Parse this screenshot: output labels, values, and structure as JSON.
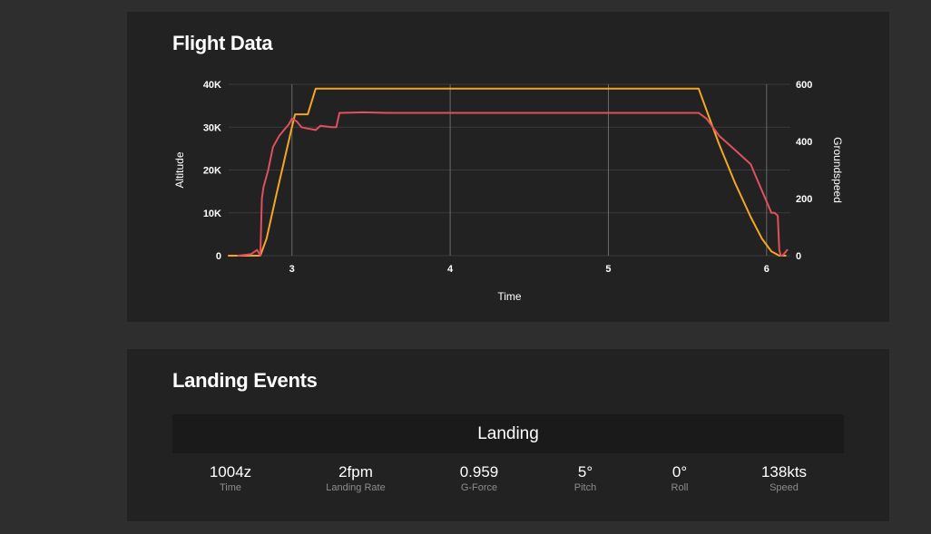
{
  "flight_data": {
    "title": "Flight Data"
  },
  "landing_events": {
    "title": "Landing Events",
    "table_header": "Landing",
    "stats": [
      {
        "value": "1004z",
        "label": "Time"
      },
      {
        "value": "2fpm",
        "label": "Landing Rate"
      },
      {
        "value": "0.959",
        "label": "G-Force"
      },
      {
        "value": "5°",
        "label": "Pitch"
      },
      {
        "value": "0°",
        "label": "Roll"
      },
      {
        "value": "138kts",
        "label": "Speed"
      }
    ]
  },
  "colors": {
    "altitude_line": "#f5a623",
    "groundspeed_line": "#e0505e",
    "grid": "#3a3a3a",
    "vertical_grid": "#6a6a6a"
  },
  "chart_data": {
    "type": "line",
    "xlabel": "Time",
    "ylabel_left": "Altitude",
    "ylabel_right": "Groundspeed",
    "xlim": [
      2.6,
      6.15
    ],
    "x_ticks": [
      3,
      4,
      5,
      6
    ],
    "x_tick_labels": [
      "3",
      "4",
      "5",
      "6"
    ],
    "ylim_left": [
      0,
      40000
    ],
    "y_ticks_left": [
      0,
      10000,
      20000,
      30000,
      40000
    ],
    "y_tick_labels_left": [
      "0",
      "10K",
      "20K",
      "30K",
      "40K"
    ],
    "ylim_right": [
      0,
      600
    ],
    "y_ticks_right": [
      0,
      200,
      400,
      600
    ],
    "y_tick_labels_right": [
      "0",
      "200",
      "400",
      "600"
    ],
    "grid": true,
    "series": [
      {
        "name": "Altitude",
        "axis": "left",
        "color": "#f5a623",
        "x": [
          2.6,
          2.8,
          2.84,
          2.9,
          2.95,
          3.0,
          3.02,
          3.1,
          3.15,
          3.2,
          4.0,
          5.0,
          5.57,
          5.63,
          5.7,
          5.8,
          5.9,
          5.97,
          6.03,
          6.08,
          6.12
        ],
        "y": [
          0,
          0,
          4000,
          14000,
          22000,
          30000,
          33000,
          33000,
          39000,
          39000,
          39000,
          39000,
          39000,
          33000,
          26000,
          17000,
          9000,
          4000,
          1000,
          0,
          0
        ]
      },
      {
        "name": "Groundspeed",
        "axis": "right",
        "color": "#e0505e",
        "x": [
          2.66,
          2.74,
          2.78,
          2.8,
          2.81,
          2.82,
          2.85,
          2.88,
          2.92,
          2.95,
          2.98,
          3.0,
          3.03,
          3.06,
          3.1,
          3.15,
          3.18,
          3.25,
          3.28,
          3.3,
          3.45,
          3.6,
          4.0,
          5.0,
          5.57,
          5.62,
          5.7,
          5.8,
          5.9,
          5.93,
          6.0,
          6.03,
          6.05,
          6.07,
          6.08,
          6.09,
          6.1,
          6.13
        ],
        "y": [
          0,
          5,
          20,
          0,
          200,
          240,
          300,
          380,
          420,
          440,
          460,
          480,
          470,
          450,
          445,
          440,
          455,
          450,
          450,
          500,
          502,
          500,
          500,
          500,
          500,
          480,
          420,
          370,
          320,
          280,
          190,
          150,
          150,
          140,
          20,
          0,
          0,
          20
        ]
      }
    ]
  }
}
